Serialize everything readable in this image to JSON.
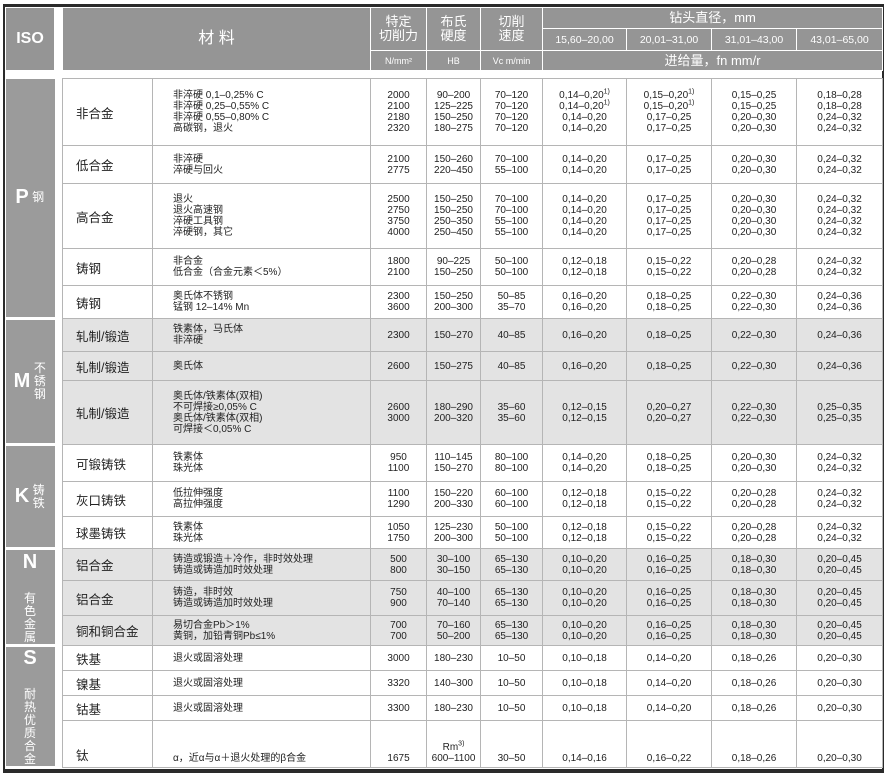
{
  "header": {
    "iso": "ISO",
    "material": "材 料",
    "force": "特定\n切削力",
    "force_unit": "N/mm²",
    "hardness": "布氏\n硬度",
    "hardness_unit": "HB",
    "speed": "切削\n速度",
    "speed_unit": "Vc m/min",
    "diameter": "钻头直径，mm",
    "diameter_ranges": [
      "15,60–20,00",
      "20,01–31,00",
      "31,01–43,00",
      "43,01–65,00"
    ],
    "feed": "进给量，fn mm/r"
  },
  "colors": {
    "header_bg": "#959595",
    "iso_bg": "#9b9b9b",
    "shaded_row": "#e3e3e3",
    "grid": "#b5b5b5"
  },
  "groups": [
    {
      "iso": "P",
      "label": "钢",
      "rows": [
        {
          "name": "非合金",
          "desc": [
            "非淬硬 0,1–0,25% C",
            "非淬硬 0,25–0,55% C",
            "非淬硬 0,55–0,80% C",
            "高碳钢，退火"
          ],
          "force": [
            "2000",
            "2100",
            "2180",
            "2320"
          ],
          "hb": [
            "90–200",
            "125–225",
            "150–250",
            "180–275"
          ],
          "speed": [
            "70–120",
            "70–120",
            "70–120",
            "70–120"
          ],
          "feeds": [
            [
              {
                "v": "0,14–0,20",
                "sup": "1)"
              },
              {
                "v": "0,14–0,20",
                "sup": "1)"
              },
              "0,14–0,20",
              "0,14–0,20"
            ],
            [
              {
                "v": "0,15–0,20",
                "sup": "1)"
              },
              {
                "v": "0,15–0,20",
                "sup": "1)"
              },
              "0,17–0,25",
              "0,17–0,25"
            ],
            [
              "0,15–0,25",
              "0,15–0,25",
              "0,20–0,30",
              "0,20–0,30"
            ],
            [
              "0,18–0,28",
              "0,18–0,28",
              "0,24–0,32",
              "0,24–0,32"
            ]
          ]
        },
        {
          "name": "低合金",
          "desc": [
            "非淬硬",
            "淬硬与回火"
          ],
          "force": [
            "2100",
            "2775"
          ],
          "hb": [
            "150–260",
            "220–450"
          ],
          "speed": [
            "70–100",
            "55–100"
          ],
          "feeds": [
            [
              "0,14–0,20",
              "0,14–0,20"
            ],
            [
              "0,17–0,25",
              "0,17–0,25"
            ],
            [
              "0,20–0,30",
              "0,20–0,30"
            ],
            [
              "0,24–0,32",
              "0,24–0,32"
            ]
          ]
        },
        {
          "name": "高合金",
          "desc": [
            "退火",
            "退火高速钢",
            "淬硬工具钢",
            "淬硬钢，其它"
          ],
          "force": [
            "2500",
            "2750",
            "3750",
            "4000"
          ],
          "hb": [
            "150–250",
            "150–250",
            "250–350",
            "250–450"
          ],
          "speed": [
            "70–100",
            "70–100",
            "55–100",
            "55–100"
          ],
          "feeds": [
            [
              "0,14–0,20",
              "0,14–0,20",
              "0,14–0,20",
              "0,14–0,20"
            ],
            [
              "0,17–0,25",
              "0,17–0,25",
              "0,17–0,25",
              "0,17–0,25"
            ],
            [
              "0,20–0,30",
              "0,20–0,30",
              "0,20–0,30",
              "0,20–0,30"
            ],
            [
              "0,24–0,32",
              "0,24–0,32",
              "0,24–0,32",
              "0,24–0,32"
            ]
          ]
        },
        {
          "name": "铸钢",
          "desc": [
            "非合金",
            "低合金（合金元素＜5%）"
          ],
          "force": [
            "1800",
            "2100"
          ],
          "hb": [
            "90–225",
            "150–250"
          ],
          "speed": [
            "50–100",
            "50–100"
          ],
          "feeds": [
            [
              "0,12–0,18",
              "0,12–0,18"
            ],
            [
              "0,15–0,22",
              "0,15–0,22"
            ],
            [
              "0,20–0,28",
              "0,20–0,28"
            ],
            [
              "0,24–0,32",
              "0,24–0,32"
            ]
          ]
        },
        {
          "name": "铸钢",
          "desc": [
            "奥氏体不锈钢",
            "锰钢 12–14% Mn"
          ],
          "force": [
            "2300",
            "3600"
          ],
          "hb": [
            "150–250",
            "200–300"
          ],
          "speed": [
            "50–85",
            "35–70"
          ],
          "feeds": [
            [
              "0,16–0,20",
              "0,16–0,20"
            ],
            [
              "0,18–0,25",
              "0,18–0,25"
            ],
            [
              "0,22–0,30",
              "0,22–0,30"
            ],
            [
              "0,24–0,36",
              "0,24–0,36"
            ]
          ]
        }
      ]
    },
    {
      "iso": "M",
      "label": "不锈钢",
      "shaded": true,
      "rows": [
        {
          "name": "轧制/锻造",
          "desc": [
            "铁素体，马氏体",
            "非淬硬"
          ],
          "force": [
            "2300"
          ],
          "hb": [
            "150–270"
          ],
          "speed": [
            "40–85"
          ],
          "feeds": [
            [
              "0,16–0,20"
            ],
            [
              "0,18–0,25"
            ],
            [
              "0,22–0,30"
            ],
            [
              "0,24–0,36"
            ]
          ]
        },
        {
          "name": "轧制/锻造",
          "desc": [
            "奥氏体"
          ],
          "force": [
            "2600"
          ],
          "hb": [
            "150–275"
          ],
          "speed": [
            "40–85"
          ],
          "feeds": [
            [
              "0,16–0,20"
            ],
            [
              "0,18–0,25"
            ],
            [
              "0,22–0,30"
            ],
            [
              "0,24–0,36"
            ]
          ]
        },
        {
          "name": "轧制/锻造",
          "desc": [
            "奥氏体/铁素体(双相)",
            "不可焊接≥0,05% C",
            "奥氏体/铁素体(双相)",
            "可焊接＜0,05% C"
          ],
          "force": [
            "2600",
            "3000"
          ],
          "hb": [
            "180–290",
            "200–320"
          ],
          "speed": [
            "35–60",
            "35–60"
          ],
          "feeds": [
            [
              "0,12–0,15",
              "0,12–0,15"
            ],
            [
              "0,20–0,27",
              "0,20–0,27"
            ],
            [
              "0,22–0,30",
              "0,22–0,30"
            ],
            [
              "0,25–0,35",
              "0,25–0,35"
            ]
          ]
        }
      ]
    },
    {
      "iso": "K",
      "label": "铸铁",
      "rows": [
        {
          "name": "可锻铸铁",
          "desc": [
            "铁素体",
            "珠光体"
          ],
          "force": [
            "950",
            "1100"
          ],
          "hb": [
            "110–145",
            "150–270"
          ],
          "speed": [
            "80–100",
            "80–100"
          ],
          "feeds": [
            [
              "0,14–0,20",
              "0,14–0,20"
            ],
            [
              "0,18–0,25",
              "0,18–0,25"
            ],
            [
              "0,20–0,30",
              "0,20–0,30"
            ],
            [
              "0,24–0,32",
              "0,24–0,32"
            ]
          ]
        },
        {
          "name": "灰口铸铁",
          "desc": [
            "低拉伸强度",
            "高拉伸强度"
          ],
          "force": [
            "1100",
            "1290"
          ],
          "hb": [
            "150–220",
            "200–330"
          ],
          "speed": [
            "60–100",
            "60–100"
          ],
          "feeds": [
            [
              "0,12–0,18",
              "0,12–0,18"
            ],
            [
              "0,15–0,22",
              "0,15–0,22"
            ],
            [
              "0,20–0,28",
              "0,20–0,28"
            ],
            [
              "0,24–0,32",
              "0,24–0,32"
            ]
          ]
        },
        {
          "name": "球墨铸铁",
          "desc": [
            "铁素体",
            "珠光体"
          ],
          "force": [
            "1050",
            "1750"
          ],
          "hb": [
            "125–230",
            "200–300"
          ],
          "speed": [
            "50–100",
            "50–100"
          ],
          "feeds": [
            [
              "0,12–0,18",
              "0,12–0,18"
            ],
            [
              "0,15–0,22",
              "0,15–0,22"
            ],
            [
              "0,20–0,28",
              "0,20–0,28"
            ],
            [
              "0,24–0,32",
              "0,24–0,32"
            ]
          ]
        }
      ]
    },
    {
      "iso": "N",
      "label": "有色金属",
      "shaded": true,
      "rows": [
        {
          "name": "铝合金",
          "desc": [
            "铸造或锻造＋冷作，非时效处理",
            "铸造或铸造加时效处理"
          ],
          "force": [
            "500",
            "800"
          ],
          "hb": [
            "30–100",
            "30–150"
          ],
          "speed": [
            "65–130",
            "65–130"
          ],
          "feeds": [
            [
              "0,10–0,20",
              "0,10–0,20"
            ],
            [
              "0,16–0,25",
              "0,16–0,25"
            ],
            [
              "0,18–0,30",
              "0,18–0,30"
            ],
            [
              "0,20–0,45",
              "0,20–0,45"
            ]
          ]
        },
        {
          "name": "铝合金",
          "desc": [
            "铸造，非时效",
            "铸造或铸造加时效处理"
          ],
          "force": [
            "750",
            "900"
          ],
          "hb": [
            "40–100",
            "70–140"
          ],
          "speed": [
            "65–130",
            "65–130"
          ],
          "feeds": [
            [
              "0,10–0,20",
              "0,10–0,20"
            ],
            [
              "0,16–0,25",
              "0,16–0,25"
            ],
            [
              "0,18–0,30",
              "0,18–0,30"
            ],
            [
              "0,20–0,45",
              "0,20–0,45"
            ]
          ]
        },
        {
          "name": "铜和铜合金",
          "desc": [
            "易切合金Pb＞1%",
            "黄铜，加铅青铜Pb≤1%"
          ],
          "force": [
            "700",
            "700"
          ],
          "hb": [
            "70–160",
            "50–200"
          ],
          "speed": [
            "65–130",
            "65–130"
          ],
          "feeds": [
            [
              "0,10–0,20",
              "0,10–0,20"
            ],
            [
              "0,16–0,25",
              "0,16–0,25"
            ],
            [
              "0,18–0,30",
              "0,18–0,30"
            ],
            [
              "0,20–0,45",
              "0,20–0,45"
            ]
          ]
        }
      ]
    },
    {
      "iso": "S",
      "label": "耐热优质合金",
      "rows": [
        {
          "name": "铁基",
          "desc": [
            "退火或固溶处理"
          ],
          "force": [
            "3000"
          ],
          "hb": [
            "180–230"
          ],
          "speed": [
            "10–50"
          ],
          "feeds": [
            [
              "0,10–0,18"
            ],
            [
              "0,14–0,20"
            ],
            [
              "0,18–0,26"
            ],
            [
              "0,20–0,30"
            ]
          ]
        },
        {
          "name": "镍基",
          "desc": [
            "退火或固溶处理"
          ],
          "force": [
            "3320"
          ],
          "hb": [
            "140–300"
          ],
          "speed": [
            "10–50"
          ],
          "feeds": [
            [
              "0,10–0,18"
            ],
            [
              "0,14–0,20"
            ],
            [
              "0,18–0,26"
            ],
            [
              "0,20–0,30"
            ]
          ]
        },
        {
          "name": "钴基",
          "desc": [
            "退火或固溶处理"
          ],
          "force": [
            "3300"
          ],
          "hb": [
            "180–230"
          ],
          "speed": [
            "10–50"
          ],
          "feeds": [
            [
              "0,10–0,18"
            ],
            [
              "0,14–0,20"
            ],
            [
              "0,18–0,26"
            ],
            [
              "0,20–0,30"
            ]
          ]
        },
        {
          "name": "钛",
          "desc": [
            "α，近α与α＋退火处理的β合金"
          ],
          "force": [
            "1675"
          ],
          "hb": [
            {
              "v": "Rm",
              "sup": "3)"
            },
            "600–1100"
          ],
          "speed": [
            "30–50"
          ],
          "feeds": [
            [
              "0,14–0,16"
            ],
            [
              "0,16–0,22"
            ],
            [
              "0,18–0,26"
            ],
            [
              "0,20–0,30"
            ]
          ],
          "bottom_aligned": true
        }
      ]
    }
  ]
}
